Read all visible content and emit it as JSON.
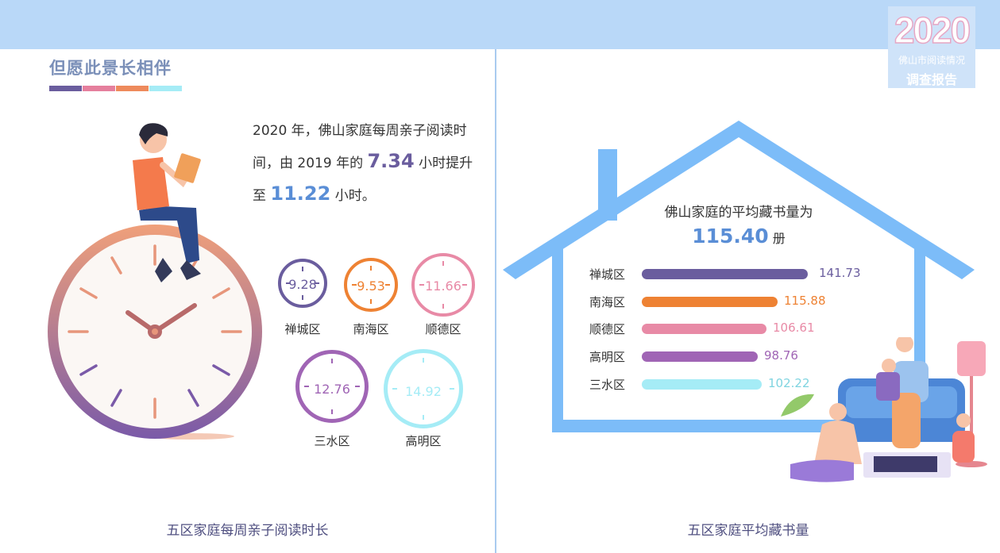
{
  "badge": {
    "year": "2020",
    "subtitle": "佛山市阅读情况",
    "title": "调查报告"
  },
  "section_title": "但愿此景长相伴",
  "swatch_colors": [
    "#6a5d9e",
    "#e57f9d",
    "#ee8a5c",
    "#a5ecf6"
  ],
  "intro": {
    "part1": "2020 年，佛山家庭每周亲子阅读时间，由 2019 年的 ",
    "value_2019": "7.34",
    "part2": " 小时提升至 ",
    "value_2020": "11.22",
    "part3": " 小时。"
  },
  "left_chart": {
    "caption": "五区家庭每周亲子阅读时长",
    "districts": [
      {
        "name": "禅城区",
        "value": "9.28",
        "color": "#6a5d9e"
      },
      {
        "name": "南海区",
        "value": "9.53",
        "color": "#ee8233"
      },
      {
        "name": "顺德区",
        "value": "11.66",
        "color": "#e88aa6"
      },
      {
        "name": "三水区",
        "value": "12.76",
        "color": "#a065b5"
      },
      {
        "name": "高明区",
        "value": "14.92",
        "color": "#a5ecf6"
      }
    ]
  },
  "right_chart": {
    "caption": "五区家庭平均藏书量",
    "title": "佛山家庭的平均藏书量为",
    "total": "115.40",
    "unit": "册"
  },
  "chart_data": [
    {
      "type": "bar",
      "orientation": "horizontal",
      "categories": [
        "禅城区",
        "南海区",
        "顺德区",
        "高明区",
        "三水区"
      ],
      "values": [
        141.73,
        115.88,
        106.61,
        98.76,
        102.22
      ],
      "labels": [
        "141.73",
        "115.88",
        "106.61",
        "98.76",
        "102.22"
      ],
      "colors": [
        "#6a5d9e",
        "#ee8233",
        "#e88aa6",
        "#a065b5",
        "#a5ecf6"
      ],
      "title": "佛山家庭的平均藏书量为 115.40 册",
      "xlabel": "",
      "ylabel": ""
    }
  ]
}
